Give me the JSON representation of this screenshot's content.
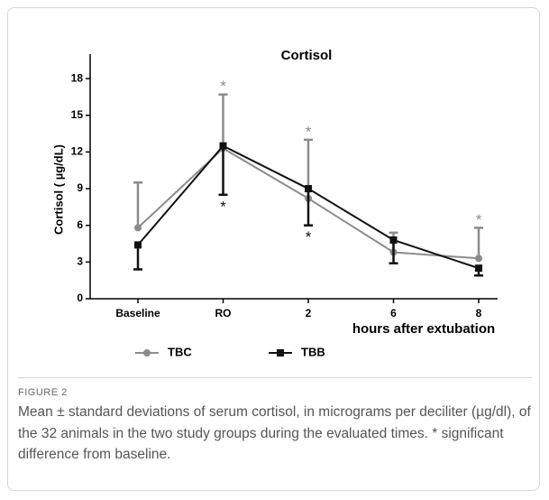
{
  "chart_data": {
    "type": "line",
    "title": "Cortisol",
    "y_label": "Cortisol ( µg/dL)",
    "x_label": "hours after extubation",
    "categories": [
      "Baseline",
      "RO",
      "2",
      "6",
      "8"
    ],
    "ylim": [
      0,
      20
    ],
    "yticks": [
      0,
      3,
      6,
      9,
      12,
      15,
      18
    ],
    "series": [
      {
        "name": "TBC",
        "color": "#8c8c8c",
        "marker": "circle",
        "error_direction": "up",
        "values": [
          5.8,
          12.3,
          8.2,
          3.8,
          3.3
        ],
        "errors": [
          3.7,
          4.4,
          4.8,
          1.6,
          2.5
        ]
      },
      {
        "name": "TBB",
        "color": "#111111",
        "marker": "square",
        "error_direction": "down",
        "values": [
          4.4,
          12.5,
          9.0,
          4.8,
          2.5
        ],
        "errors": [
          2.0,
          4.0,
          3.0,
          1.9,
          0.6
        ]
      }
    ],
    "annotations": [
      {
        "text": "*",
        "series": 0,
        "index": 1
      },
      {
        "text": "*",
        "series": 0,
        "index": 2
      },
      {
        "text": "*",
        "series": 0,
        "index": 4
      },
      {
        "text": "*",
        "series": 1,
        "index": 1
      },
      {
        "text": "*",
        "series": 1,
        "index": 2
      }
    ]
  },
  "caption": {
    "label": "FIGURE 2",
    "text": "Mean ± standard deviations of serum cortisol, in micrograms per deciliter (µg/dl), of the 32 animals in the two study groups during the evaluated times. * significant difference from baseline."
  }
}
